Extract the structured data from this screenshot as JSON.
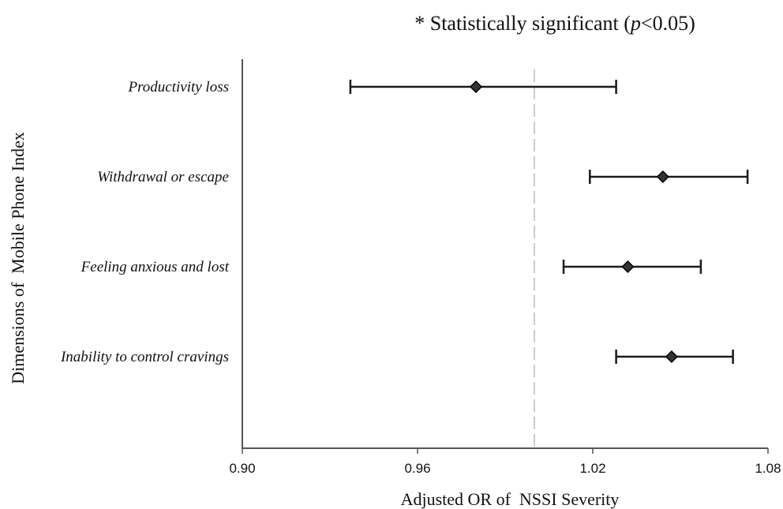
{
  "chart_data": {
    "type": "scatter",
    "subtype": "forest-plot",
    "title": "",
    "note": {
      "prefix": "* Statistically significant (",
      "italic": "p",
      "suffix": "<0.05)"
    },
    "xlabel": "Adjusted OR of  NSSI Severity",
    "ylabel": "Dimensions of  Mobile Phone Index",
    "xlim": [
      0.9,
      1.08
    ],
    "xticks": [
      0.9,
      0.96,
      1.02,
      1.08
    ],
    "xtick_labels": [
      "0.90",
      "0.96",
      "1.02",
      "1.08"
    ],
    "reference_line": 1.0,
    "grid": false,
    "series": [
      {
        "points": [
          {
            "label": "Productivity loss",
            "or": 0.98,
            "ci": [
              0.937,
              1.028
            ]
          },
          {
            "label": "Withdrawal or escape",
            "or": 1.044,
            "ci": [
              1.019,
              1.073
            ]
          },
          {
            "label": "Feeling anxious and lost",
            "or": 1.032,
            "ci": [
              1.01,
              1.057
            ]
          },
          {
            "label": "Inability to control cravings",
            "or": 1.047,
            "ci": [
              1.028,
              1.068
            ]
          }
        ]
      }
    ],
    "colors": {
      "marker": "#1a1a1a",
      "axis": "#555555",
      "reference": "#bbbbbb",
      "text": "#111111"
    }
  }
}
